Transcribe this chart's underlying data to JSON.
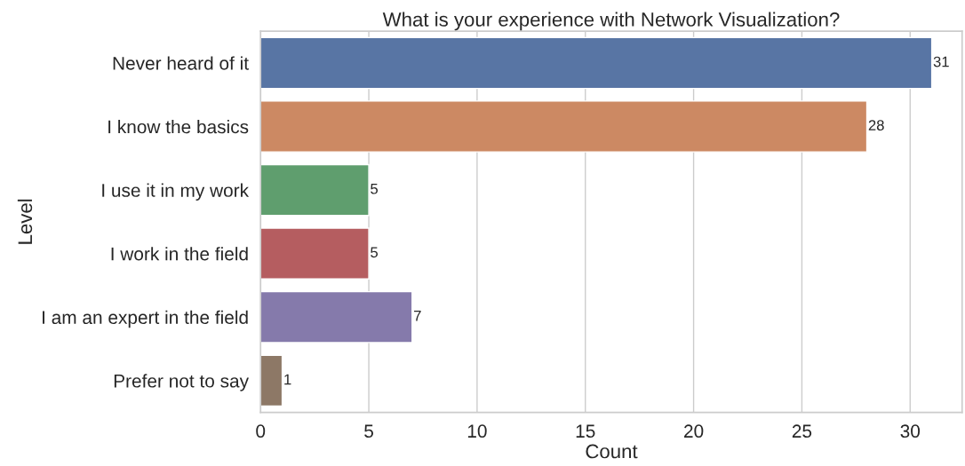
{
  "chart_data": {
    "type": "bar",
    "orientation": "horizontal",
    "title": "What is your experience with Network Visualization?",
    "xlabel": "Count",
    "ylabel": "Level",
    "categories": [
      "Never heard of it",
      "I know the basics",
      "I use it in my work",
      "I work in the field",
      "I am an expert in the field",
      "Prefer not to say"
    ],
    "values": [
      31,
      28,
      5,
      5,
      7,
      1
    ],
    "colors": [
      "#5875a4",
      "#cc8963",
      "#5f9e6e",
      "#b55d60",
      "#857aab",
      "#8d7866"
    ],
    "xlim": [
      0,
      32.4
    ],
    "xticks": [
      0,
      5,
      10,
      15,
      20,
      25,
      30
    ],
    "grid": "x",
    "data_labels": true
  }
}
